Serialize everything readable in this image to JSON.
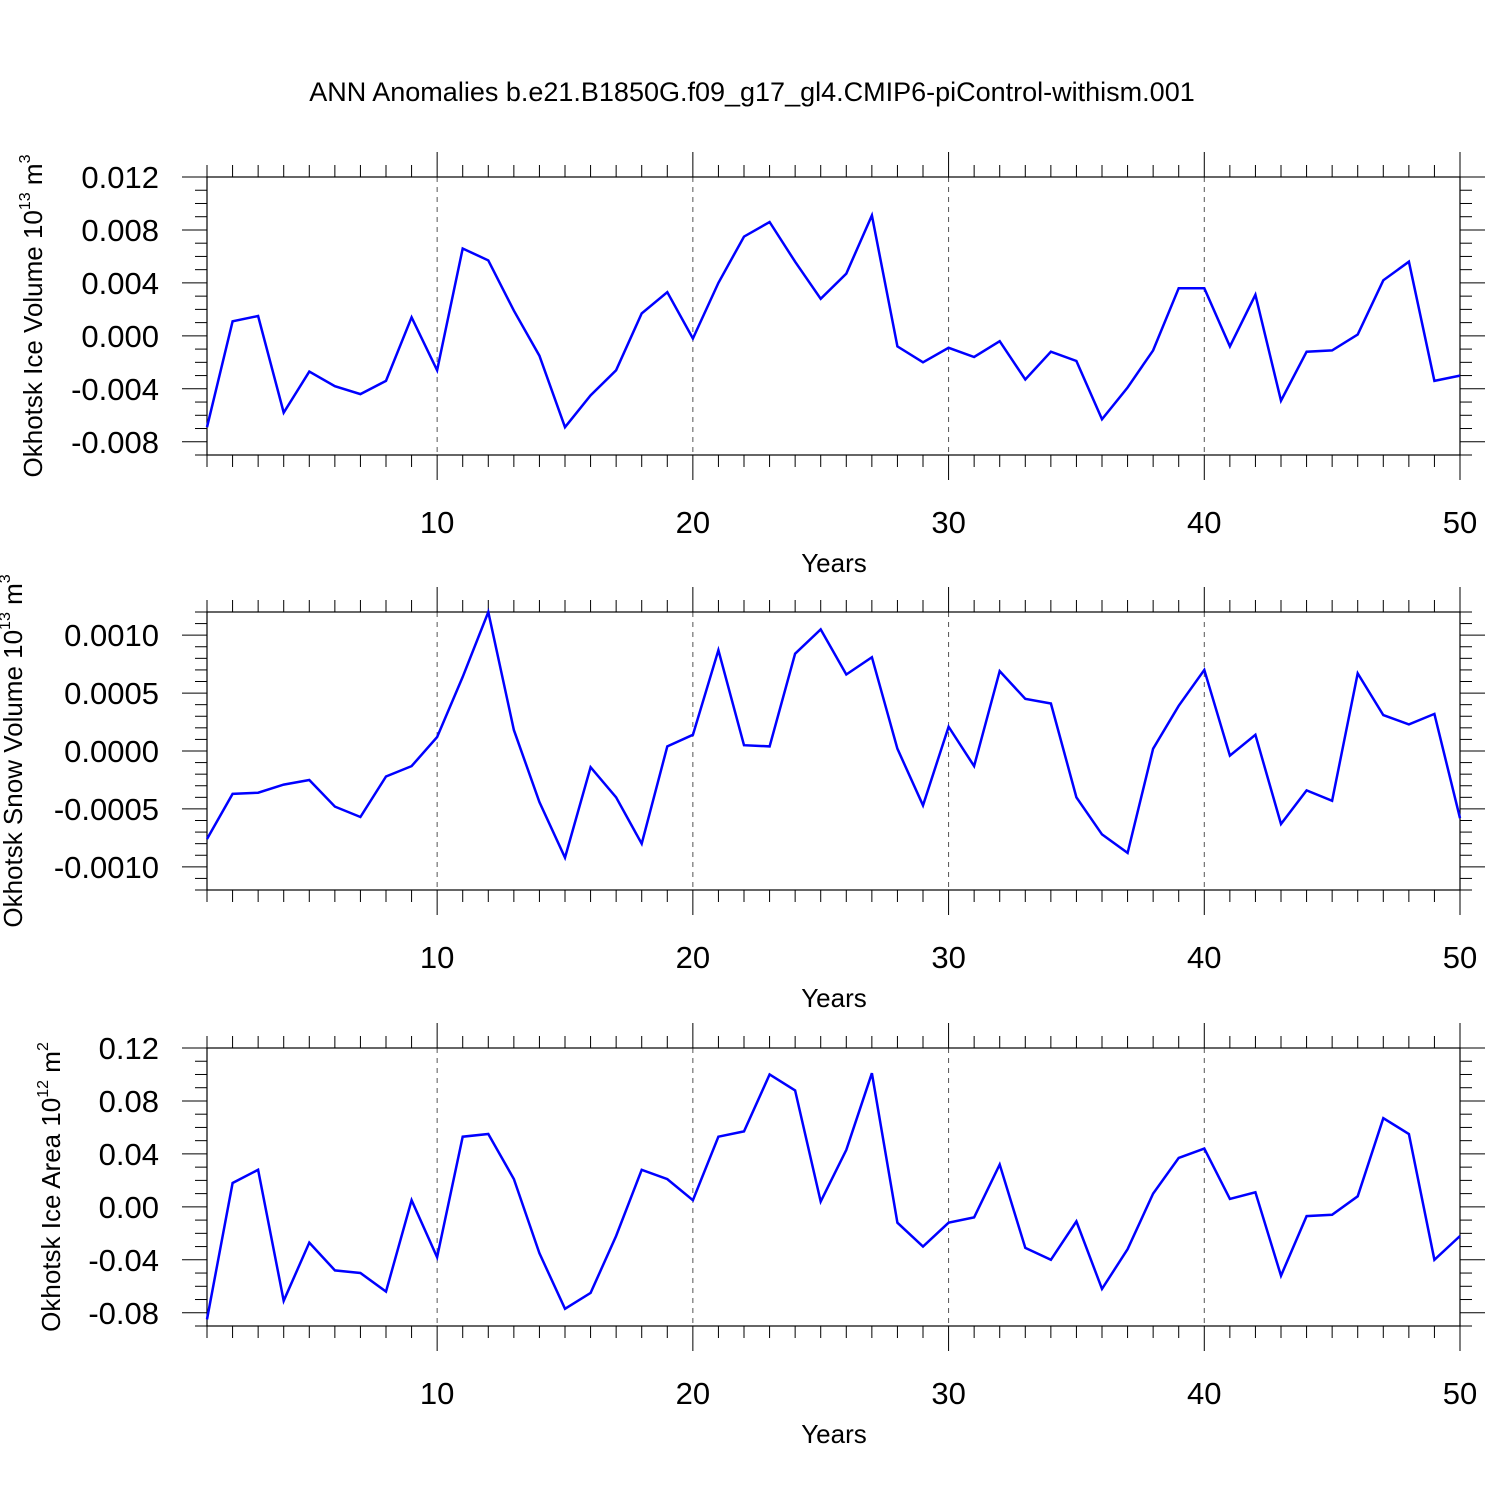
{
  "title": "ANN Anomalies b.e21.B1850G.f09_g17_gl4.CMIP6-piControl-withism.001",
  "chart_data": [
    {
      "type": "line",
      "name": "ice-volume",
      "ylabel_main": "Okhotsk Ice Volume 10",
      "ylabel_exp": "13",
      "ylabel_unit": " m",
      "ylabel_unit_exp": "3",
      "xlabel": "Years",
      "xlim": [
        1,
        50
      ],
      "ylim": [
        -0.009,
        0.012
      ],
      "yticks": [
        -0.008,
        -0.004,
        0.0,
        0.004,
        0.008,
        0.012
      ],
      "ytick_labels": [
        "-0.008",
        "-0.004",
        "0.000",
        "0.004",
        "0.008",
        "0.012"
      ],
      "yminor_step": 0.001,
      "xticks": [
        10,
        20,
        30,
        40,
        50
      ],
      "xtick_labels": [
        "10",
        "20",
        "30",
        "40",
        "50"
      ],
      "x": [
        1,
        2,
        3,
        4,
        5,
        6,
        7,
        8,
        9,
        10,
        11,
        12,
        13,
        14,
        15,
        16,
        17,
        18,
        19,
        20,
        21,
        22,
        23,
        24,
        25,
        26,
        27,
        28,
        29,
        30,
        31,
        32,
        33,
        34,
        35,
        36,
        37,
        38,
        39,
        40,
        41,
        42,
        43,
        44,
        45,
        46,
        47,
        48,
        49,
        50
      ],
      "values": [
        -0.0069,
        0.0011,
        0.0015,
        -0.0058,
        -0.0027,
        -0.0038,
        -0.0044,
        -0.0034,
        0.0014,
        -0.0026,
        0.0066,
        0.0057,
        0.0019,
        -0.0015,
        -0.0069,
        -0.0045,
        -0.0026,
        0.0017,
        0.0033,
        -0.0002,
        0.004,
        0.0075,
        0.0086,
        0.0056,
        0.0028,
        0.0047,
        0.0091,
        -0.0008,
        -0.002,
        -0.0009,
        -0.0016,
        -0.0004,
        -0.0033,
        -0.0012,
        -0.0019,
        -0.0063,
        -0.0039,
        -0.0011,
        0.0036,
        0.0036,
        -0.0008,
        0.0031,
        -0.0049,
        -0.0012,
        -0.0011,
        0.0001,
        0.0042,
        0.0056,
        -0.0034,
        -0.003
      ]
    },
    {
      "type": "line",
      "name": "snow-volume",
      "ylabel_main": "Okhotsk Snow Volume 10",
      "ylabel_exp": "13",
      "ylabel_unit": " m",
      "ylabel_unit_exp": "3",
      "xlabel": "Years",
      "xlim": [
        1,
        50
      ],
      "ylim": [
        -0.0012,
        0.0012
      ],
      "yticks": [
        -0.001,
        -0.0005,
        0.0,
        0.0005,
        0.001
      ],
      "ytick_labels": [
        "-0.0010",
        "-0.0005",
        "0.0000",
        "0.0005",
        "0.0010"
      ],
      "yminor_step": 0.0001,
      "xticks": [
        10,
        20,
        30,
        40,
        50
      ],
      "xtick_labels": [
        "10",
        "20",
        "30",
        "40",
        "50"
      ],
      "x": [
        1,
        2,
        3,
        4,
        5,
        6,
        7,
        8,
        9,
        10,
        11,
        12,
        13,
        14,
        15,
        16,
        17,
        18,
        19,
        20,
        21,
        22,
        23,
        24,
        25,
        26,
        27,
        28,
        29,
        30,
        31,
        32,
        33,
        34,
        35,
        36,
        37,
        38,
        39,
        40,
        41,
        42,
        43,
        44,
        45,
        46,
        47,
        48,
        49,
        50
      ],
      "values": [
        -0.00076,
        -0.00037,
        -0.00036,
        -0.00029,
        -0.00025,
        -0.00048,
        -0.00057,
        -0.00022,
        -0.00013,
        0.00012,
        0.00064,
        0.0012,
        0.00018,
        -0.00044,
        -0.00092,
        -0.00014,
        -0.0004,
        -0.0008,
        4e-05,
        0.00014,
        0.00087,
        5e-05,
        4e-05,
        0.00084,
        0.00105,
        0.00066,
        0.00081,
        2e-05,
        -0.00047,
        0.00021,
        -0.00013,
        0.00069,
        0.00045,
        0.00041,
        -0.0004,
        -0.00072,
        -0.00088,
        2e-05,
        0.00039,
        0.0007,
        -4e-05,
        0.00014,
        -0.00063,
        -0.00034,
        -0.00043,
        0.00067,
        0.00031,
        0.00023,
        0.00032,
        -0.00058
      ]
    },
    {
      "type": "line",
      "name": "ice-area",
      "ylabel_main": "Okhotsk Ice Area 10",
      "ylabel_exp": "12",
      "ylabel_unit": " m",
      "ylabel_unit_exp": "2",
      "xlabel": "Years",
      "xlim": [
        1,
        50
      ],
      "ylim": [
        -0.09,
        0.12
      ],
      "yticks": [
        -0.08,
        -0.04,
        0.0,
        0.04,
        0.08,
        0.12
      ],
      "ytick_labels": [
        "-0.08",
        "-0.04",
        "0.00",
        "0.04",
        "0.08",
        "0.12"
      ],
      "yminor_step": 0.01,
      "xticks": [
        10,
        20,
        30,
        40,
        50
      ],
      "xtick_labels": [
        "10",
        "20",
        "30",
        "40",
        "50"
      ],
      "x": [
        1,
        2,
        3,
        4,
        5,
        6,
        7,
        8,
        9,
        10,
        11,
        12,
        13,
        14,
        15,
        16,
        17,
        18,
        19,
        20,
        21,
        22,
        23,
        24,
        25,
        26,
        27,
        28,
        29,
        30,
        31,
        32,
        33,
        34,
        35,
        36,
        37,
        38,
        39,
        40,
        41,
        42,
        43,
        44,
        45,
        46,
        47,
        48,
        49,
        50
      ],
      "values": [
        -0.085,
        0.018,
        0.028,
        -0.071,
        -0.027,
        -0.048,
        -0.05,
        -0.064,
        0.005,
        -0.038,
        0.053,
        0.055,
        0.021,
        -0.035,
        -0.077,
        -0.065,
        -0.022,
        0.028,
        0.021,
        0.005,
        0.053,
        0.057,
        0.1,
        0.088,
        0.004,
        0.043,
        0.101,
        -0.012,
        -0.03,
        -0.012,
        -0.008,
        0.032,
        -0.031,
        -0.04,
        -0.011,
        -0.062,
        -0.032,
        0.01,
        0.037,
        0.044,
        0.006,
        0.011,
        -0.052,
        -0.007,
        -0.006,
        0.008,
        0.067,
        0.055,
        -0.04,
        -0.022
      ]
    }
  ]
}
